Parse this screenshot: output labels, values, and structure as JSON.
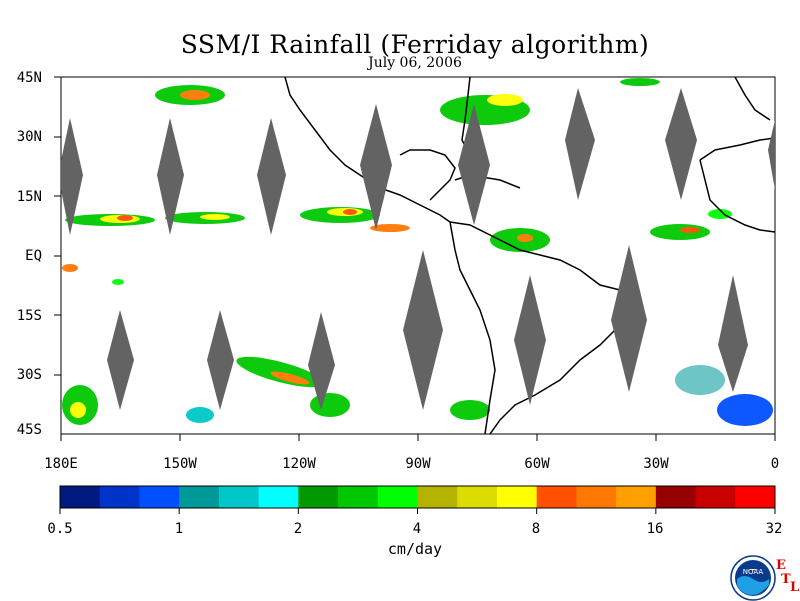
{
  "title": "SSM/I Rainfall (Ferriday algorithm)",
  "date": "July 06, 2006",
  "units": "cm/day",
  "lat_labels": [
    "45N",
    "30N",
    "15N",
    "EQ",
    "15S",
    "30S",
    "45S"
  ],
  "lon_labels": [
    "180E",
    "150W",
    "120W",
    "90W",
    "60W",
    "30W",
    "0"
  ],
  "colorbar": {
    "colors": [
      "#001a80",
      "#0033c8",
      "#0050ff",
      "#009999",
      "#00c8c8",
      "#00ffff",
      "#009900",
      "#00c800",
      "#00ff00",
      "#b4b400",
      "#dcdc00",
      "#ffff00",
      "#ff5000",
      "#ff7800",
      "#ffa000",
      "#960000",
      "#c80000",
      "#ff0000"
    ],
    "tick_labels": [
      "0.5",
      "1",
      "2",
      "4",
      "8",
      "16",
      "32"
    ]
  },
  "logo": {
    "agency": "NOAA",
    "lab_letters": [
      "E",
      "T",
      "L"
    ]
  },
  "colors": {
    "swath_gap": "#636363",
    "coastline": "#000000"
  }
}
